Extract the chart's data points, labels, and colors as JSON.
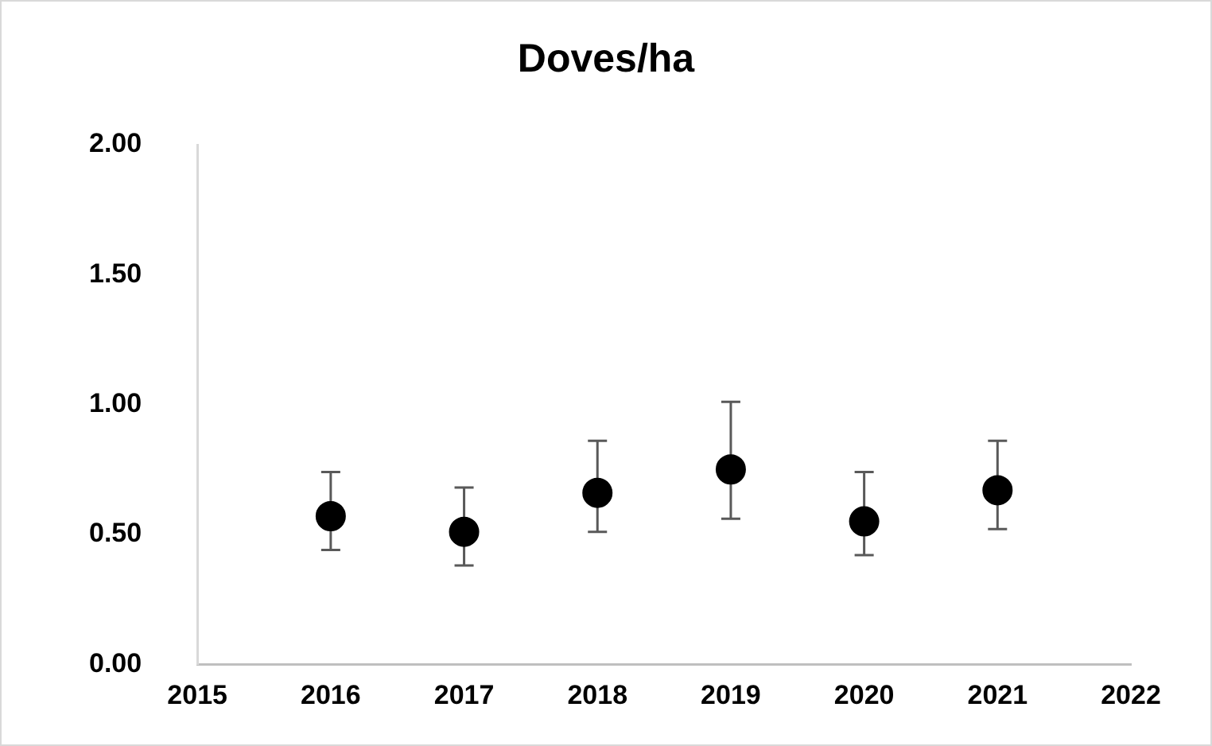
{
  "chart_data": {
    "type": "scatter",
    "title": "Doves/ha",
    "x": [
      2016,
      2017,
      2018,
      2019,
      2020,
      2021
    ],
    "series": [
      {
        "color": "#000000",
        "values": [
          0.57,
          0.51,
          0.66,
          0.75,
          0.55,
          0.67
        ],
        "errors": [
          [
            0.44,
            0.74
          ],
          [
            0.38,
            0.68
          ],
          [
            0.51,
            0.86
          ],
          [
            0.56,
            1.01
          ],
          [
            0.42,
            0.74
          ],
          [
            0.52,
            0.86
          ]
        ]
      }
    ],
    "xlim": [
      2015,
      2022
    ],
    "xticks": [
      2015,
      2016,
      2017,
      2018,
      2019,
      2020,
      2021,
      2022
    ],
    "ylim": [
      0,
      2
    ],
    "yticks": [
      {
        "value": 0,
        "label": "0.00"
      },
      {
        "value": 0.5,
        "label": "0.50"
      },
      {
        "value": 1,
        "label": "1.00"
      },
      {
        "value": 1.5,
        "label": "1.50"
      },
      {
        "value": 2,
        "label": "2.00"
      }
    ],
    "grid": false,
    "legend": false,
    "marker": "circle"
  }
}
